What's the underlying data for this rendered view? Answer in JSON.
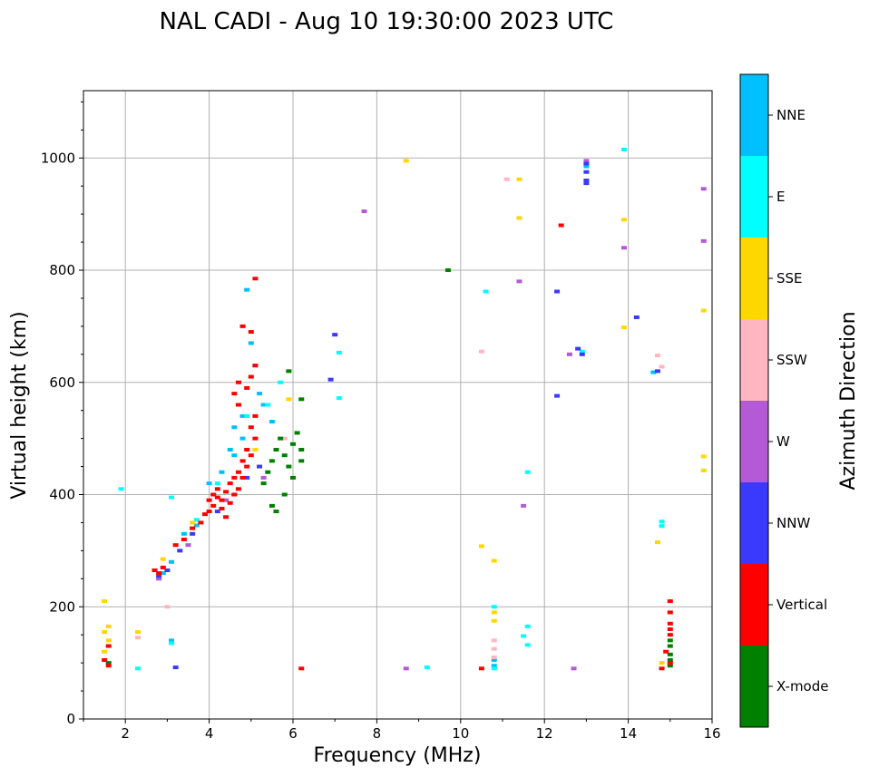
{
  "chart_data": {
    "type": "scatter",
    "title": "NAL CADI - Aug 10 19:30:00 2023 UTC",
    "xlabel": "Frequency (MHz)",
    "ylabel": "Virtual height (km)",
    "xlim": [
      1,
      16
    ],
    "ylim": [
      0,
      1120
    ],
    "xticks": [
      2,
      4,
      6,
      8,
      10,
      12,
      14,
      16
    ],
    "yticks": [
      0,
      200,
      400,
      600,
      800,
      1000
    ],
    "grid": true,
    "colorbar": {
      "label": "Azimuth Direction",
      "categories": [
        {
          "name": "X-mode",
          "color": "#008000"
        },
        {
          "name": "Vertical",
          "color": "#ff0000"
        },
        {
          "name": "NNW",
          "color": "#3a3aff"
        },
        {
          "name": "W",
          "color": "#b45ad6"
        },
        {
          "name": "SSW",
          "color": "#ffb6c1"
        },
        {
          "name": "SSE",
          "color": "#ffd700"
        },
        {
          "name": "E",
          "color": "#00ffff"
        },
        {
          "name": "NNE",
          "color": "#00bfff"
        }
      ]
    },
    "series": [
      {
        "name": "Vertical",
        "points": [
          [
            2.7,
            265
          ],
          [
            2.8,
            260
          ],
          [
            2.9,
            270
          ],
          [
            3.2,
            310
          ],
          [
            3.4,
            320
          ],
          [
            3.6,
            340
          ],
          [
            3.8,
            350
          ],
          [
            3.9,
            365
          ],
          [
            4.0,
            370
          ],
          [
            4.0,
            390
          ],
          [
            4.1,
            380
          ],
          [
            4.1,
            400
          ],
          [
            4.2,
            395
          ],
          [
            4.2,
            410
          ],
          [
            4.3,
            390
          ],
          [
            4.3,
            375
          ],
          [
            4.4,
            360
          ],
          [
            4.4,
            405
          ],
          [
            4.5,
            385
          ],
          [
            4.5,
            420
          ],
          [
            4.6,
            400
          ],
          [
            4.6,
            430
          ],
          [
            4.7,
            440
          ],
          [
            4.7,
            410
          ],
          [
            4.8,
            460
          ],
          [
            4.8,
            430
          ],
          [
            4.9,
            480
          ],
          [
            4.9,
            450
          ],
          [
            5.0,
            470
          ],
          [
            5.0,
            520
          ],
          [
            5.1,
            500
          ],
          [
            5.1,
            540
          ],
          [
            4.7,
            560
          ],
          [
            4.9,
            590
          ],
          [
            5.0,
            610
          ],
          [
            5.1,
            630
          ],
          [
            4.8,
            700
          ],
          [
            5.0,
            690
          ],
          [
            5.1,
            785
          ],
          [
            4.6,
            580
          ],
          [
            4.7,
            600
          ],
          [
            6.2,
            90
          ],
          [
            12.4,
            880
          ],
          [
            15.0,
            210
          ],
          [
            15.0,
            190
          ],
          [
            15.0,
            170
          ],
          [
            15.0,
            160
          ],
          [
            15.0,
            150
          ],
          [
            14.9,
            120
          ],
          [
            15.0,
            100
          ],
          [
            14.8,
            90
          ],
          [
            1.5,
            105
          ],
          [
            1.6,
            95
          ],
          [
            10.5,
            90
          ],
          [
            1.6,
            130
          ]
        ]
      },
      {
        "name": "X-mode",
        "points": [
          [
            5.3,
            420
          ],
          [
            5.4,
            440
          ],
          [
            5.5,
            460
          ],
          [
            5.6,
            480
          ],
          [
            5.7,
            500
          ],
          [
            5.8,
            470
          ],
          [
            5.9,
            450
          ],
          [
            6.0,
            490
          ],
          [
            6.1,
            510
          ],
          [
            6.2,
            460
          ],
          [
            5.5,
            380
          ],
          [
            5.6,
            370
          ],
          [
            5.8,
            400
          ],
          [
            6.0,
            430
          ],
          [
            6.2,
            480
          ],
          [
            5.9,
            620
          ],
          [
            6.2,
            570
          ],
          [
            9.7,
            800
          ],
          [
            15.0,
            140
          ],
          [
            15.0,
            130
          ],
          [
            15.0,
            115
          ],
          [
            15.0,
            105
          ],
          [
            15.0,
            95
          ],
          [
            1.6,
            100
          ]
        ]
      },
      {
        "name": "NNW",
        "points": [
          [
            2.8,
            255
          ],
          [
            3.0,
            265
          ],
          [
            3.3,
            300
          ],
          [
            3.6,
            330
          ],
          [
            4.2,
            370
          ],
          [
            4.6,
            400
          ],
          [
            4.9,
            430
          ],
          [
            5.2,
            450
          ],
          [
            7.0,
            685
          ],
          [
            6.9,
            605
          ],
          [
            12.8,
            660
          ],
          [
            12.9,
            650
          ],
          [
            13.0,
            990
          ],
          [
            13.0,
            975
          ],
          [
            13.0,
            960
          ],
          [
            13.0,
            955
          ],
          [
            12.3,
            762
          ],
          [
            12.3,
            576
          ],
          [
            14.2,
            716
          ],
          [
            14.7,
            620
          ],
          [
            3.2,
            92
          ]
        ]
      },
      {
        "name": "W",
        "points": [
          [
            2.8,
            250
          ],
          [
            3.5,
            310
          ],
          [
            4.4,
            390
          ],
          [
            5.3,
            430
          ],
          [
            7.7,
            905
          ],
          [
            11.4,
            780
          ],
          [
            11.5,
            380
          ],
          [
            12.6,
            650
          ],
          [
            13.0,
            995
          ],
          [
            13.9,
            840
          ],
          [
            15.8,
            945
          ],
          [
            15.8,
            852
          ],
          [
            8.7,
            90
          ],
          [
            12.7,
            90
          ]
        ]
      },
      {
        "name": "SSW",
        "points": [
          [
            3.0,
            200
          ],
          [
            2.3,
            145
          ],
          [
            10.5,
            655
          ],
          [
            11.1,
            962
          ],
          [
            14.7,
            648
          ],
          [
            10.8,
            140
          ],
          [
            10.8,
            125
          ],
          [
            10.8,
            110
          ],
          [
            14.8,
            628
          ],
          [
            5.8,
            500
          ]
        ]
      },
      {
        "name": "SSE",
        "points": [
          [
            1.5,
            210
          ],
          [
            1.6,
            165
          ],
          [
            1.5,
            155
          ],
          [
            1.6,
            140
          ],
          [
            2.3,
            155
          ],
          [
            2.9,
            285
          ],
          [
            3.6,
            350
          ],
          [
            5.1,
            480
          ],
          [
            5.9,
            570
          ],
          [
            8.7,
            995
          ],
          [
            10.5,
            308
          ],
          [
            10.8,
            282
          ],
          [
            10.8,
            190
          ],
          [
            10.8,
            175
          ],
          [
            11.4,
            962
          ],
          [
            11.4,
            893
          ],
          [
            13.9,
            890
          ],
          [
            13.9,
            698
          ],
          [
            15.8,
            728
          ],
          [
            15.8,
            468
          ],
          [
            15.8,
            443
          ],
          [
            14.7,
            315
          ],
          [
            14.8,
            100
          ],
          [
            1.5,
            120
          ]
        ]
      },
      {
        "name": "E",
        "points": [
          [
            1.9,
            410
          ],
          [
            3.1,
            395
          ],
          [
            3.1,
            135
          ],
          [
            3.7,
            355
          ],
          [
            4.2,
            420
          ],
          [
            4.9,
            540
          ],
          [
            5.4,
            560
          ],
          [
            5.7,
            600
          ],
          [
            7.1,
            653
          ],
          [
            7.1,
            572
          ],
          [
            10.6,
            762
          ],
          [
            11.6,
            440
          ],
          [
            11.6,
            165
          ],
          [
            11.5,
            148
          ],
          [
            11.6,
            132
          ],
          [
            12.9,
            655
          ],
          [
            13.9,
            1015
          ],
          [
            14.8,
            352
          ],
          [
            14.8,
            344
          ],
          [
            10.8,
            200
          ],
          [
            10.8,
            90
          ],
          [
            9.2,
            92
          ],
          [
            2.3,
            90
          ]
        ]
      },
      {
        "name": "NNE",
        "points": [
          [
            2.9,
            260
          ],
          [
            3.1,
            280
          ],
          [
            3.4,
            330
          ],
          [
            3.7,
            345
          ],
          [
            4.0,
            420
          ],
          [
            4.3,
            440
          ],
          [
            4.6,
            470
          ],
          [
            4.8,
            500
          ],
          [
            4.9,
            765
          ],
          [
            5.0,
            670
          ],
          [
            5.1,
            630
          ],
          [
            5.2,
            580
          ],
          [
            5.3,
            560
          ],
          [
            5.5,
            530
          ],
          [
            4.6,
            520
          ],
          [
            4.8,
            540
          ],
          [
            4.5,
            480
          ],
          [
            3.1,
            140
          ],
          [
            13.0,
            985
          ],
          [
            14.6,
            618
          ],
          [
            10.8,
            105
          ],
          [
            10.8,
            95
          ]
        ]
      }
    ]
  }
}
